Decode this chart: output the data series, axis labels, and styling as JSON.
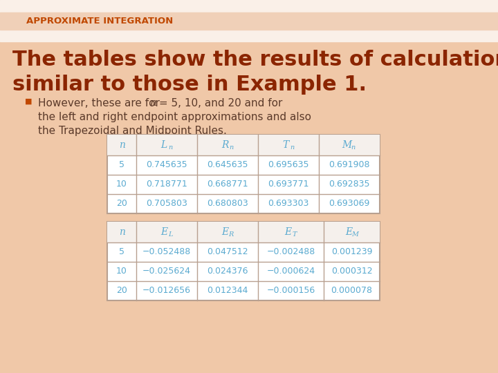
{
  "title": "APPROXIMATE INTEGRATION",
  "title_color": "#C04800",
  "heading_line1": "The tables show the results of calculations",
  "heading_line2": "similar to those in Example 1.",
  "heading_color": "#8B2500",
  "bullet_line1": "However, these are for ",
  "bullet_n": "n",
  "bullet_line1b": " = 5, 10, and 20 and for",
  "bullet_line2": "the left and right endpoint approximations and also",
  "bullet_line3": "the Trapezoidal and Midpoint Rules.",
  "bullet_color": "#5B3A2A",
  "bg_color_top": "#F8E8DC",
  "bg_color": "#F0C8A8",
  "table1_data": [
    [
      "5",
      "0.745635",
      "0.645635",
      "0.695635",
      "0.691908"
    ],
    [
      "10",
      "0.718771",
      "0.668771",
      "0.693771",
      "0.692835"
    ],
    [
      "20",
      "0.705803",
      "0.680803",
      "0.693303",
      "0.693069"
    ]
  ],
  "table2_data": [
    [
      "5",
      "−0.052488",
      "0.047512",
      "−0.002488",
      "0.001239"
    ],
    [
      "10",
      "−0.025624",
      "0.024376",
      "−0.000624",
      "0.000312"
    ],
    [
      "20",
      "−0.012656",
      "0.012344",
      "−0.000156",
      "0.000078"
    ]
  ],
  "table_border_color": "#B8A090",
  "table_header_color": "#5AAAD0",
  "table_text_color": "#5AAAD0",
  "table_bg": "#FFFFFF",
  "table_header_bg": "#F8F4F0"
}
